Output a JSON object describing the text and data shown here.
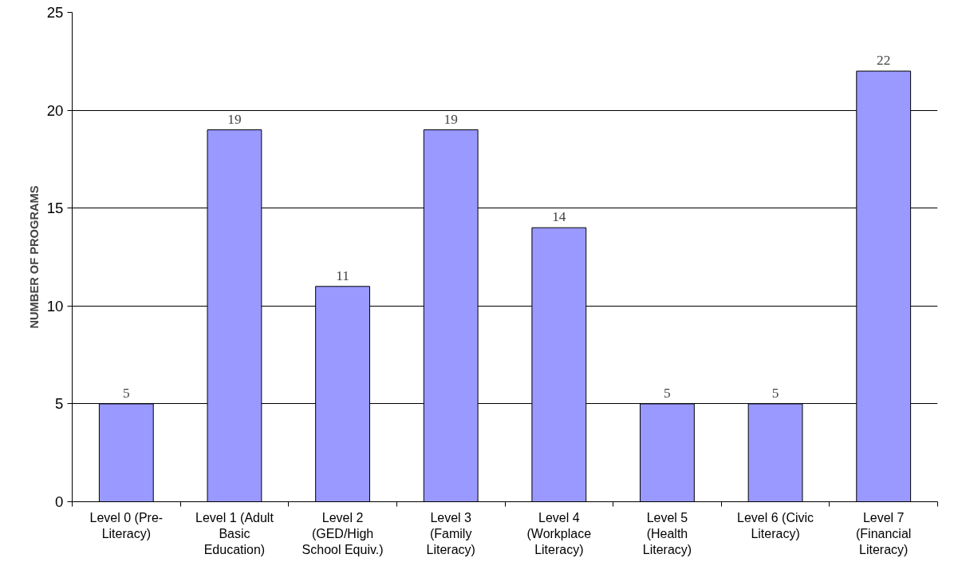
{
  "chart_data": {
    "type": "bar",
    "ylabel": "NUMBER OF PROGRAMS",
    "categories": [
      "Level 0 (Pre-Literacy)",
      "Level 1 (Adult Basic Education)",
      "Level 2 (GED/High School Equiv.)",
      "Level 3 (Family Literacy)",
      "Level 4 (Workplace Literacy)",
      "Level 5 (Health Literacy)",
      "Level 6 (Civic Literacy)",
      "Level 7 (Financial Literacy)"
    ],
    "values": [
      5,
      19,
      11,
      19,
      14,
      5,
      5,
      22
    ],
    "color": "#9999ff",
    "ylim": [
      0,
      25
    ],
    "yticks": [
      0,
      5,
      10,
      15,
      20,
      25
    ],
    "grid": "y",
    "data_labels": true
  }
}
